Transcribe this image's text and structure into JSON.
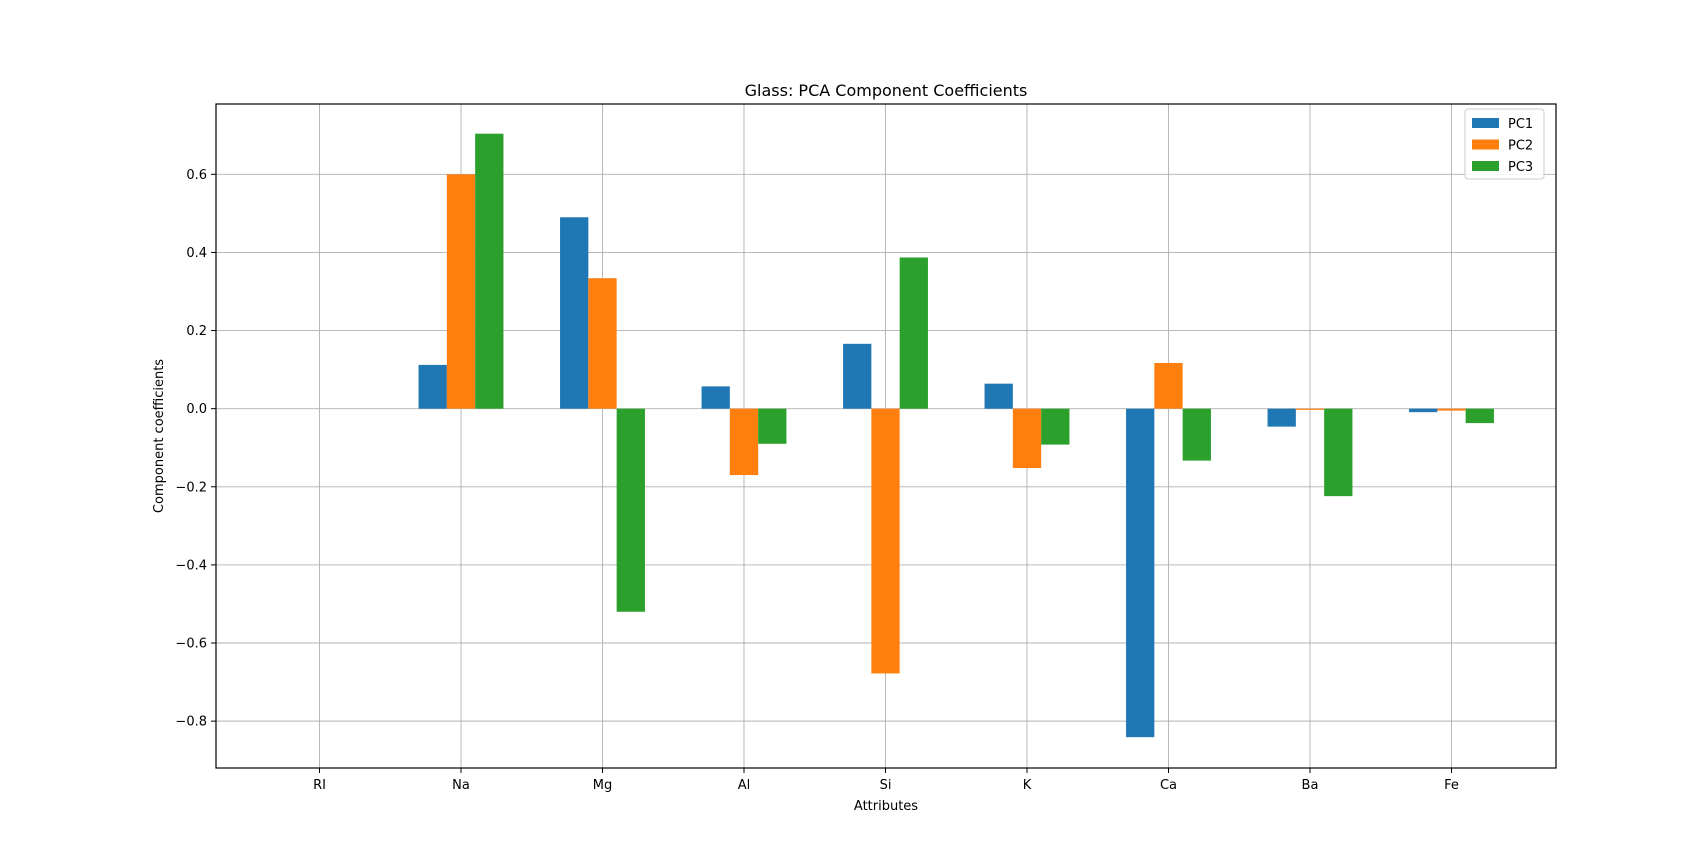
{
  "chart_data": {
    "type": "bar",
    "title": "Glass: PCA Component Coefficients",
    "xlabel": "Attributes",
    "ylabel": "Component coefficients",
    "categories": [
      "RI",
      "Na",
      "Mg",
      "Al",
      "Si",
      "K",
      "Ca",
      "Ba",
      "Fe"
    ],
    "series": [
      {
        "name": "PC1",
        "color": "#1f77b4",
        "values": [
          0.0,
          0.112,
          0.49,
          0.057,
          0.166,
          0.064,
          -0.841,
          -0.046,
          -0.009
        ]
      },
      {
        "name": "PC2",
        "color": "#ff7f0e",
        "values": [
          0.0,
          0.6,
          0.334,
          -0.17,
          -0.678,
          -0.152,
          0.117,
          -0.003,
          -0.005
        ]
      },
      {
        "name": "PC3",
        "color": "#2ca02c",
        "values": [
          0.0,
          0.704,
          -0.52,
          -0.09,
          0.387,
          -0.092,
          -0.133,
          -0.224,
          -0.037
        ]
      }
    ],
    "ylim": [
      -0.92,
      0.78
    ],
    "yticks": [
      -0.8,
      -0.6,
      -0.4,
      -0.2,
      0.0,
      0.2,
      0.4,
      0.6
    ],
    "ytick_labels": [
      "−0.8",
      "−0.6",
      "−0.4",
      "−0.2",
      "0.0",
      "0.2",
      "0.4",
      "0.6"
    ],
    "grid": true,
    "legend_position": "top-right"
  }
}
